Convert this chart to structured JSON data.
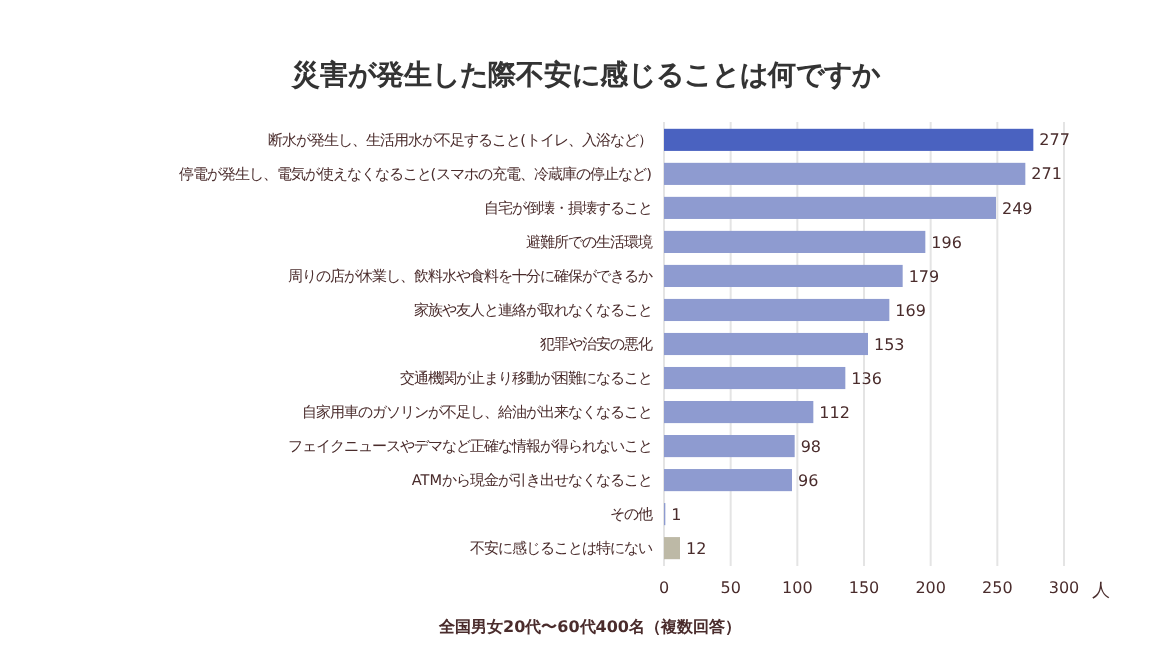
{
  "chart_data": {
    "type": "bar",
    "orientation": "horizontal",
    "title": "災害が発生した際不安に感じることは何ですか",
    "categories": [
      "断水が発生し、生活用水が不足すること(トイレ、入浴など）",
      "停電が発生し、電気が使えなくなること(スマホの充電、冷蔵庫の停止など)",
      "自宅が倒壊・損壊すること",
      "避難所での生活環境",
      "周りの店が休業し、飲料水や食料を十分に確保ができるか",
      "家族や友人と連絡が取れなくなること",
      "犯罪や治安の悪化",
      "交通機関が止まり移動が困難になること",
      "自家用車のガソリンが不足し、給油が出来なくなること",
      "フェイクニュースやデマなど正確な情報が得られないこと",
      "ATMから現金が引き出せなくなること",
      "その他",
      "不安に感じることは特にない"
    ],
    "values": [
      277,
      271,
      249,
      196,
      179,
      169,
      153,
      136,
      112,
      98,
      96,
      1,
      12
    ],
    "colors": [
      "#4a62c0",
      "#8e9bd0",
      "#8e9bd0",
      "#8e9bd0",
      "#8e9bd0",
      "#8e9bd0",
      "#8e9bd0",
      "#8e9bd0",
      "#8e9bd0",
      "#8e9bd0",
      "#8e9bd0",
      "#8e9bd0",
      "#bdb9a6"
    ],
    "xlim": [
      0,
      300
    ],
    "xticks": [
      0,
      50,
      100,
      150,
      200,
      250,
      300
    ],
    "xlabel": "人",
    "grid": "x",
    "data_labels": true,
    "annotations": [
      "全国男女20代〜60代400名（複数回答）"
    ]
  }
}
